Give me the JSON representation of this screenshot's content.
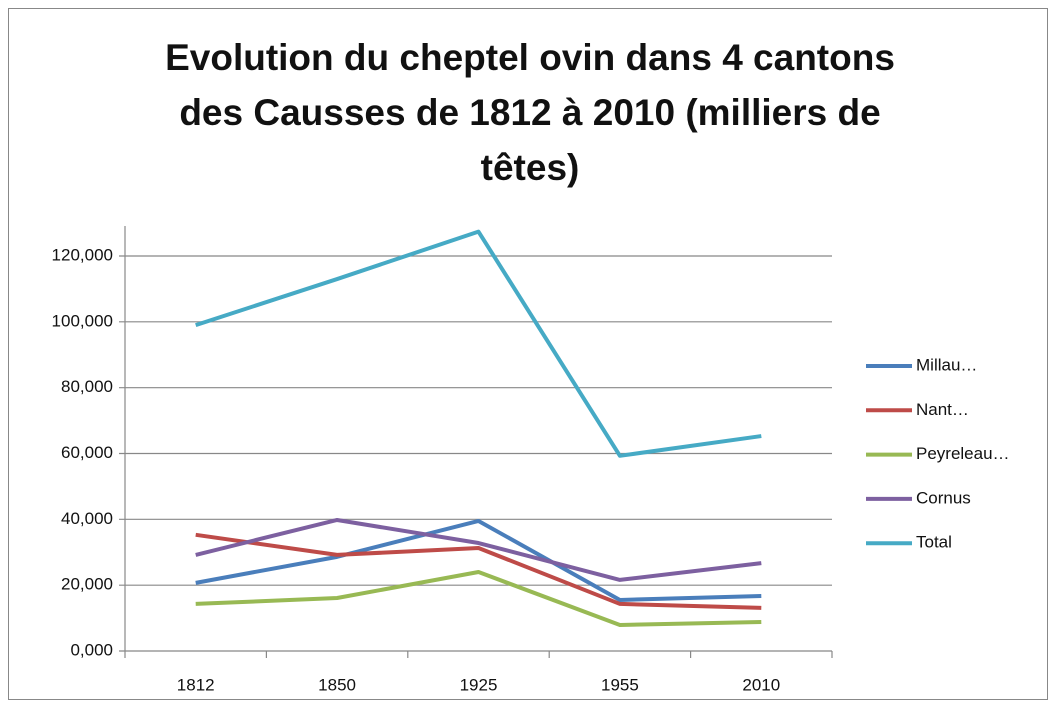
{
  "chart_data": {
    "type": "line",
    "title": "Evolution du cheptel ovin dans 4 cantons des Causses de 1812 à 2010 (milliers de têtes)",
    "categories": [
      "1812",
      "1850",
      "1925",
      "1955",
      "2010"
    ],
    "series": [
      {
        "name": "Millau…",
        "color": "#4a7ebb",
        "values": [
          20.7,
          28.6,
          39.5,
          15.5,
          16.7
        ]
      },
      {
        "name": "Nant…",
        "color": "#be4b48",
        "values": [
          35.3,
          29.2,
          31.3,
          14.3,
          13.1
        ]
      },
      {
        "name": "Peyreleau…",
        "color": "#98b954",
        "values": [
          14.3,
          16.1,
          24,
          7.9,
          8.8
        ]
      },
      {
        "name": "Cornus",
        "color": "#7d60a0",
        "values": [
          29.2,
          39.8,
          32.8,
          21.6,
          26.7
        ]
      },
      {
        "name": "Total",
        "color": "#46aac5",
        "values": [
          99,
          113,
          127.4,
          59.3,
          65.3
        ]
      }
    ],
    "ylim": [
      0,
      120
    ],
    "yticks": [
      {
        "value": 0,
        "label": "0,000"
      },
      {
        "value": 20,
        "label": "20,000"
      },
      {
        "value": 40,
        "label": "40,000"
      },
      {
        "value": 60,
        "label": "60,000"
      },
      {
        "value": 80,
        "label": "80,000"
      },
      {
        "value": 100,
        "label": "100,000"
      },
      {
        "value": 120,
        "label": "120,000"
      }
    ],
    "grid": true,
    "legend": "right"
  }
}
